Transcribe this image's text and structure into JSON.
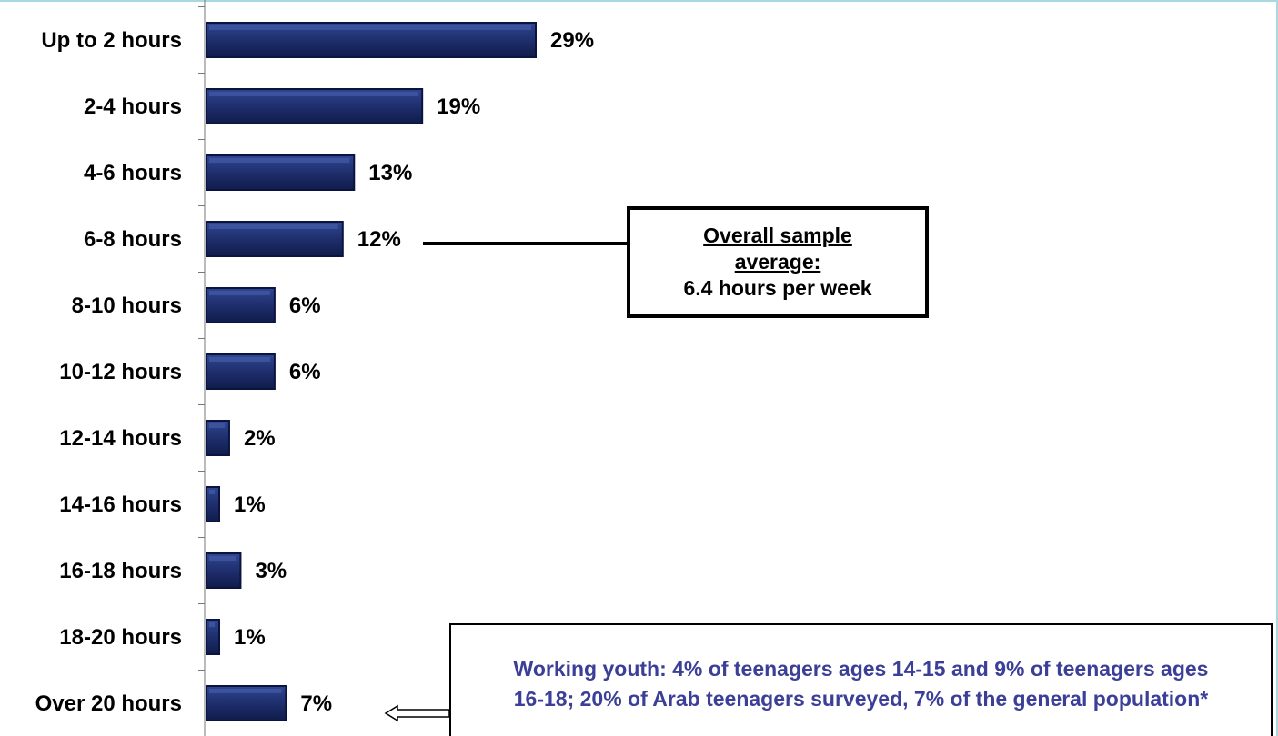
{
  "chart_data": {
    "type": "bar",
    "orientation": "horizontal",
    "categories": [
      "Up to 2 hours",
      "2-4 hours",
      "4-6 hours",
      "6-8 hours",
      "8-10 hours",
      "10-12 hours",
      "12-14 hours",
      "14-16 hours",
      "16-18 hours",
      "18-20 hours",
      "Over 20 hours"
    ],
    "values": [
      29,
      19,
      13,
      12,
      6,
      6,
      2,
      1,
      3,
      1,
      7
    ],
    "value_labels": [
      "29%",
      "19%",
      "13%",
      "12%",
      "6%",
      "6%",
      "2%",
      "1%",
      "3%",
      "1%",
      "7%"
    ],
    "unit": "%",
    "xlim": [
      0,
      29
    ],
    "bar_color": "#1f2f6e",
    "bar_edge_color": "#0b1440",
    "title": "",
    "xlabel": "",
    "ylabel": "",
    "grid": false,
    "legend": "none",
    "annotations": [
      {
        "lines": [
          "Overall sample",
          "average:",
          "6.4 hours per week"
        ],
        "points_to": "6-8 hours"
      },
      {
        "text": "Working youth: 4% of teenagers ages 14-15 and 9% of teenagers ages 16-18; 20% of Arab teenagers surveyed, 7% of the general population*",
        "points_to": "Over 20 hours",
        "color": "#3b3f98"
      }
    ]
  }
}
